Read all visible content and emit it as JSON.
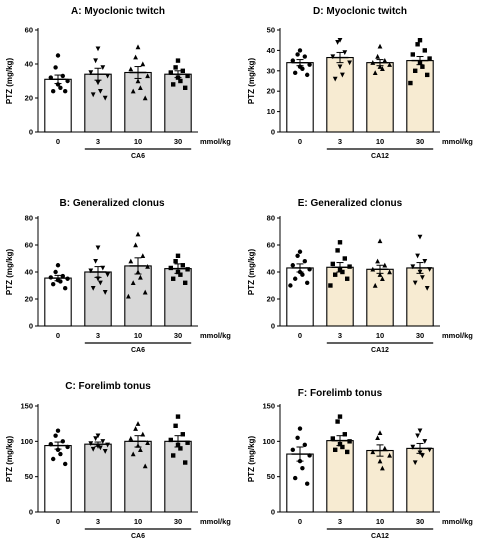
{
  "chart_data": [
    {
      "type": "bar",
      "title": "A: Myoclonic twitch",
      "ylabel": "PTZ (mg/kg)",
      "categories": [
        "0",
        "3",
        "10",
        "30"
      ],
      "unit_label": "mmol/kg",
      "group_label": "CA6",
      "ylim": [
        0,
        60
      ],
      "yticks": [
        0,
        20,
        40,
        60
      ],
      "values": [
        31,
        34,
        35,
        34
      ],
      "sem": [
        2.5,
        3.5,
        3.5,
        2.0
      ],
      "fill": [
        "#ffffff",
        "#d8d8d8",
        "#d8d8d8",
        "#d8d8d8"
      ],
      "markers": [
        "circle",
        "triangle-down",
        "triangle",
        "square"
      ],
      "points": [
        [
          45,
          38,
          33,
          32,
          30,
          28,
          26,
          24,
          24
        ],
        [
          49,
          42,
          38,
          35,
          33,
          29,
          24,
          22,
          20
        ],
        [
          50,
          44,
          40,
          37,
          33,
          30,
          26,
          24,
          20
        ],
        [
          42,
          38,
          36,
          35,
          33,
          32,
          30,
          28,
          26
        ]
      ]
    },
    {
      "type": "bar",
      "title": "D: Myoclonic twitch",
      "ylabel": "PTZ (mg/kg)",
      "categories": [
        "0",
        "3",
        "10",
        "30"
      ],
      "unit_label": "mmol/kg",
      "group_label": "CA12",
      "ylim": [
        0,
        50
      ],
      "yticks": [
        0,
        10,
        20,
        30,
        40,
        50
      ],
      "values": [
        34,
        36.5,
        34,
        35
      ],
      "sem": [
        1.5,
        2.5,
        1.5,
        2.0
      ],
      "fill": [
        "#ffffff",
        "#f7ebd2",
        "#f7ebd2",
        "#f7ebd2"
      ],
      "markers": [
        "circle",
        "triangle-down",
        "triangle",
        "square"
      ],
      "points": [
        [
          40,
          38,
          37,
          35,
          33,
          32,
          31,
          29,
          28
        ],
        [
          45,
          44,
          39,
          37,
          34,
          32,
          28,
          26
        ],
        [
          42,
          37,
          35,
          34,
          33,
          32,
          31,
          29
        ],
        [
          45,
          43,
          40,
          38,
          36,
          34,
          32,
          30,
          28,
          24
        ]
      ]
    },
    {
      "type": "bar",
      "title": "B: Generalized clonus",
      "ylabel": "PTZ (mg/kg)",
      "categories": [
        "0",
        "3",
        "10",
        "30"
      ],
      "unit_label": "mmol/kg",
      "group_label": "CA6",
      "ylim": [
        0,
        80
      ],
      "yticks": [
        0,
        20,
        40,
        60,
        80
      ],
      "values": [
        35.5,
        40,
        44.5,
        42.5
      ],
      "sem": [
        2.0,
        4.0,
        6.0,
        3.5
      ],
      "fill": [
        "#ffffff",
        "#d8d8d8",
        "#d8d8d8",
        "#d8d8d8"
      ],
      "markers": [
        "circle",
        "triangle-down",
        "triangle",
        "square"
      ],
      "points": [
        [
          45,
          40,
          37,
          36,
          35,
          34,
          33,
          31,
          28
        ],
        [
          58,
          48,
          43,
          41,
          38,
          35,
          32,
          28,
          25
        ],
        [
          68,
          60,
          52,
          48,
          44,
          40,
          36,
          32,
          25,
          22
        ],
        [
          52,
          48,
          45,
          43,
          42,
          40,
          38,
          35,
          32
        ]
      ]
    },
    {
      "type": "bar",
      "title": "E: Generalized clonus",
      "ylabel": "PTZ (mg/kg)",
      "categories": [
        "0",
        "3",
        "10",
        "30"
      ],
      "unit_label": "mmol/kg",
      "group_label": "CA12",
      "ylim": [
        0,
        80
      ],
      "yticks": [
        0,
        20,
        40,
        60,
        80
      ],
      "values": [
        43,
        43.5,
        42,
        43
      ],
      "sem": [
        3.0,
        3.5,
        3.0,
        4.0
      ],
      "fill": [
        "#ffffff",
        "#f7ebd2",
        "#f7ebd2",
        "#f7ebd2"
      ],
      "markers": [
        "circle",
        "square",
        "triangle",
        "triangle-down"
      ],
      "points": [
        [
          55,
          52,
          48,
          45,
          42,
          40,
          38,
          35,
          32,
          30
        ],
        [
          62,
          56,
          50,
          46,
          44,
          42,
          40,
          38,
          35,
          30
        ],
        [
          63,
          48,
          45,
          42,
          40,
          38,
          35,
          30
        ],
        [
          66,
          52,
          48,
          44,
          42,
          40,
          36,
          32,
          28
        ]
      ]
    },
    {
      "type": "bar",
      "title": "C: Forelimb tonus",
      "ylabel": "PTZ (mg/kg)",
      "categories": [
        "0",
        "3",
        "10",
        "30"
      ],
      "unit_label": "mmol/kg",
      "group_label": "CA6",
      "ylim": [
        0,
        150
      ],
      "yticks": [
        0,
        50,
        100,
        150
      ],
      "values": [
        94,
        96,
        100,
        100
      ],
      "sem": [
        5,
        3,
        8,
        8
      ],
      "fill": [
        "#ffffff",
        "#d8d8d8",
        "#d8d8d8",
        "#d8d8d8"
      ],
      "markers": [
        "circle",
        "triangle-down",
        "triangle",
        "square"
      ],
      "points": [
        [
          115,
          108,
          100,
          96,
          92,
          88,
          82,
          75,
          68
        ],
        [
          108,
          104,
          100,
          97,
          95,
          93,
          91,
          89,
          86
        ],
        [
          125,
          118,
          110,
          104,
          98,
          94,
          88,
          82,
          65
        ],
        [
          135,
          122,
          110,
          102,
          98,
          95,
          90,
          80,
          70
        ]
      ]
    },
    {
      "type": "bar",
      "title": "F: Forelimb tonus",
      "ylabel": "PTZ (mg/kg)",
      "categories": [
        "0",
        "3",
        "10",
        "30"
      ],
      "unit_label": "mmol/kg",
      "group_label": "CA12",
      "ylim": [
        0,
        150
      ],
      "yticks": [
        0,
        50,
        100,
        150
      ],
      "values": [
        82,
        101,
        87,
        90
      ],
      "sem": [
        10,
        7,
        8,
        7
      ],
      "fill": [
        "#ffffff",
        "#f7ebd2",
        "#f7ebd2",
        "#f7ebd2"
      ],
      "markers": [
        "circle",
        "square",
        "triangle",
        "triangle-down"
      ],
      "points": [
        [
          118,
          105,
          95,
          88,
          80,
          72,
          62,
          48,
          40
        ],
        [
          135,
          128,
          110,
          104,
          100,
          96,
          92,
          88,
          85
        ],
        [
          112,
          105,
          90,
          85,
          80,
          72,
          62
        ],
        [
          115,
          108,
          100,
          92,
          88,
          84,
          80,
          70
        ]
      ]
    }
  ]
}
